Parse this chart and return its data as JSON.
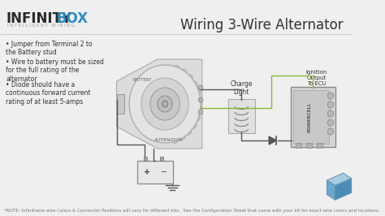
{
  "bg_color": "#efefef",
  "title": "Wiring 3-Wire Alternator",
  "title_fontsize": 12,
  "title_color": "#333333",
  "logo_infinity": "INFINITY",
  "logo_box": "BOX",
  "logo_sub": "I N T E L L I G E N T   W I R I N G",
  "logo_infinity_color": "#2a2a2a",
  "logo_box_color": "#2e8bc0",
  "bullets": [
    "Jumper from Terminal 2 to\nthe Battery stud",
    "Wire to battery must be sized\nfor the full rating of the\nalternator",
    "Diode should have a\ncontinuous forward current\nrating of at least 5-amps"
  ],
  "bullet_fontsize": 5.5,
  "note_text": "*NOTE: Infinitiwire wire Colors & Connector Positions will vary for different kits.  See the Configuration Sheet that came with your kit for exact wire colors and locations.",
  "note_fontsize": 4.0,
  "charge_light_label": "Charge\nLight",
  "ignition_label": "Ignition\nOutput\nTo ECU",
  "powercell_label": "POWERCELL",
  "battery_label": "BATTERY",
  "alternator_label": "ALTERNATOR",
  "wire_color_green": "#8ab832",
  "wire_color_dark": "#555555",
  "wire_color_black": "#222222"
}
